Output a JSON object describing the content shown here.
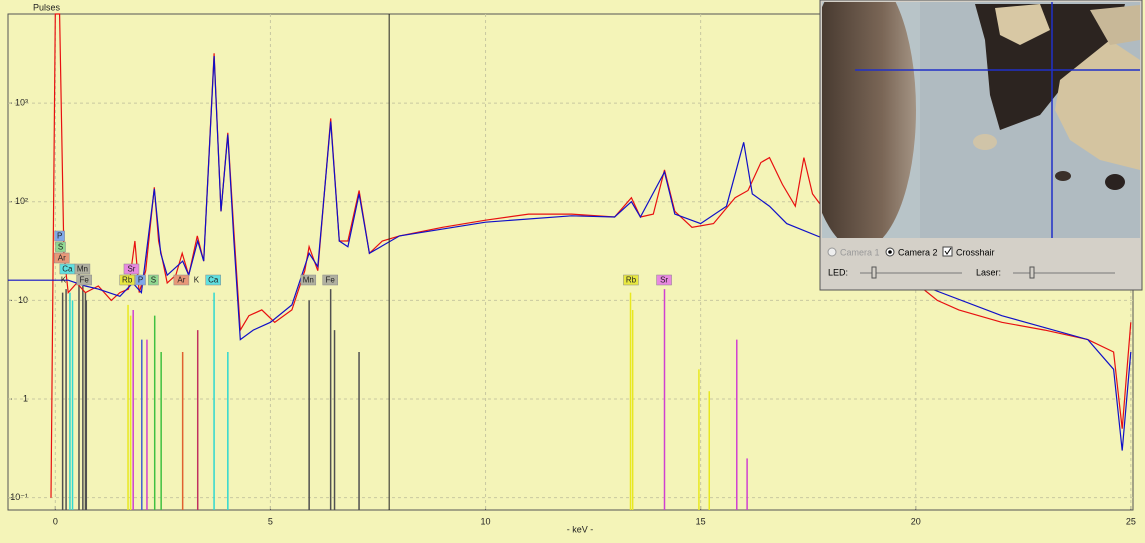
{
  "chart_data": {
    "type": "spectrum",
    "y_axis_label": "Pulses",
    "x_axis_label": "- keV -",
    "log_y": true,
    "grid": true,
    "xlim": [
      -1.1,
      25.05
    ],
    "xticks": [
      0,
      5,
      10,
      15,
      20,
      25
    ],
    "ylim": [
      0.075,
      8000
    ],
    "yticks": [
      {
        "value": 0.1,
        "label": "10⁻¹"
      },
      1,
      10,
      {
        "value": 100,
        "label": "10²"
      },
      {
        "value": 1000,
        "label": "10³"
      }
    ],
    "cursor": 7.76,
    "series": [
      {
        "name": "measured",
        "color": "#e81010",
        "x": [
          -0.1,
          0.0,
          0.1,
          0.2,
          0.3,
          0.5,
          0.7,
          1.0,
          1.3,
          1.5,
          1.7,
          1.85,
          1.95,
          2.1,
          2.3,
          2.4,
          2.6,
          2.8,
          2.95,
          3.1,
          3.3,
          3.45,
          3.69,
          3.85,
          4.01,
          4.15,
          4.3,
          4.5,
          4.8,
          5.1,
          5.5,
          5.8,
          5.9,
          6.1,
          6.4,
          6.6,
          6.8,
          7.06,
          7.3,
          7.6,
          8,
          9,
          10,
          11,
          12,
          13,
          13.39,
          13.6,
          13.9,
          14.16,
          14.4,
          14.8,
          15.3,
          15.8,
          16.1,
          16.4,
          16.6,
          16.9,
          17.2,
          17.4,
          17.6,
          18,
          18.5,
          19,
          19.5,
          20,
          20.5,
          21,
          22,
          23,
          24,
          24.6,
          24.8,
          25
        ],
        "values": [
          0.1,
          8000,
          8000,
          30,
          12,
          15,
          12,
          14,
          10,
          12,
          13,
          40,
          12,
          20,
          140,
          40,
          15,
          18,
          30,
          18,
          45,
          25,
          3200,
          80,
          500,
          50,
          5,
          7,
          8,
          6,
          8,
          20,
          35,
          20,
          700,
          40,
          40,
          130,
          30,
          40,
          45,
          55,
          65,
          75,
          75,
          70,
          110,
          70,
          75,
          210,
          80,
          55,
          60,
          110,
          130,
          250,
          280,
          150,
          90,
          280,
          120,
          70,
          50,
          35,
          25,
          15,
          10,
          8,
          6,
          5,
          4,
          3,
          0.5,
          6
        ]
      },
      {
        "name": "fit",
        "color": "#1010c8",
        "x": [
          -1.1,
          -0.1,
          0.3,
          0.7,
          1.0,
          1.5,
          1.8,
          2.0,
          2.3,
          2.45,
          2.6,
          2.96,
          3.1,
          3.31,
          3.45,
          3.69,
          3.85,
          4.01,
          4.15,
          4.3,
          4.6,
          5,
          5.5,
          5.9,
          6.1,
          6.4,
          6.6,
          6.8,
          7.06,
          7.3,
          8,
          10,
          12,
          13,
          13.39,
          13.6,
          14.16,
          14.4,
          15,
          15.6,
          16.0,
          16.2,
          16.6,
          17,
          18,
          20,
          22,
          24,
          24.6,
          24.8,
          25
        ],
        "values": [
          16,
          16,
          16,
          14,
          13,
          11,
          15,
          12,
          135,
          30,
          18,
          25,
          18,
          40,
          25,
          3000,
          80,
          480,
          40,
          4,
          5,
          6,
          9,
          30,
          22,
          650,
          40,
          35,
          120,
          30,
          45,
          62,
          72,
          70,
          100,
          70,
          200,
          75,
          60,
          90,
          400,
          120,
          90,
          60,
          40,
          15,
          7,
          4,
          2,
          0.3,
          3
        ]
      }
    ],
    "lines": [
      {
        "energy": 0.17,
        "value": 12,
        "color": "#505050"
      },
      {
        "energy": 0.25,
        "value": 13,
        "color": "#505050"
      },
      {
        "energy": 0.34,
        "value": 12,
        "color": "#30d8d0"
      },
      {
        "energy": 0.4,
        "value": 10,
        "color": "#30d8d0"
      },
      {
        "energy": 0.55,
        "value": 23,
        "color": "#505050"
      },
      {
        "energy": 0.64,
        "value": 14,
        "color": "#505050"
      },
      {
        "energy": 0.7,
        "value": 12,
        "color": "#505050"
      },
      {
        "energy": 0.72,
        "value": 10,
        "color": "#505050"
      },
      {
        "energy": 1.69,
        "value": 9,
        "color": "#e8e820"
      },
      {
        "energy": 1.75,
        "value": 7,
        "color": "#e8e820"
      },
      {
        "energy": 1.81,
        "value": 8,
        "color": "#d040d0"
      },
      {
        "energy": 2.01,
        "value": 4,
        "color": "#4060d0"
      },
      {
        "energy": 2.13,
        "value": 4,
        "color": "#d040d0"
      },
      {
        "energy": 2.31,
        "value": 7,
        "color": "#40c040"
      },
      {
        "energy": 2.46,
        "value": 3,
        "color": "#40c040"
      },
      {
        "energy": 2.96,
        "value": 3,
        "color": "#e06030"
      },
      {
        "energy": 3.31,
        "value": 5,
        "color": "#c03060"
      },
      {
        "energy": 3.69,
        "value": 12,
        "color": "#30d8d0"
      },
      {
        "energy": 4.01,
        "value": 3,
        "color": "#30d8d0"
      },
      {
        "energy": 5.9,
        "value": 10,
        "color": "#505050"
      },
      {
        "energy": 6.4,
        "value": 13,
        "color": "#505050"
      },
      {
        "energy": 6.49,
        "value": 5,
        "color": "#505050"
      },
      {
        "energy": 7.06,
        "value": 3,
        "color": "#505050"
      },
      {
        "energy": 13.37,
        "value": 12,
        "color": "#e8e820"
      },
      {
        "energy": 13.42,
        "value": 8,
        "color": "#e8e820"
      },
      {
        "energy": 14.16,
        "value": 13,
        "color": "#d040d0"
      },
      {
        "energy": 14.96,
        "value": 2,
        "color": "#e8e820"
      },
      {
        "energy": 15.2,
        "value": 1.2,
        "color": "#e8e820"
      },
      {
        "energy": 15.84,
        "value": 4,
        "color": "#d040d0"
      },
      {
        "energy": 16.08,
        "value": 0.25,
        "color": "#d040d0"
      }
    ],
    "element_labels": [
      {
        "text": "K",
        "energy": 0.19,
        "color": "none"
      },
      {
        "text": "Fe",
        "energy": 0.67,
        "color": "#b0b0a0"
      },
      {
        "text": "Rb",
        "energy": 1.67,
        "color": "#e8e840"
      },
      {
        "text": "P",
        "energy": 1.98,
        "color": "#80a8e8"
      },
      {
        "text": "S",
        "energy": 2.28,
        "color": "#90d890"
      },
      {
        "text": "Ar",
        "energy": 2.93,
        "color": "#e89878"
      },
      {
        "text": "K",
        "energy": 3.28,
        "color": "none"
      },
      {
        "text": "Ca",
        "energy": 3.67,
        "color": "#60e0e0"
      },
      {
        "text": "Mn",
        "energy": 5.88,
        "color": "#b0b0a0"
      },
      {
        "text": "Fe",
        "energy": 6.39,
        "color": "#b0b0a0"
      },
      {
        "text": "Rb",
        "energy": 13.38,
        "color": "#e8e840"
      },
      {
        "text": "Sr",
        "energy": 14.15,
        "color": "#e888e0"
      },
      {
        "text": "Ca",
        "energy": 0.28,
        "color": "#60e0e0"
      },
      {
        "text": "Mn",
        "energy": 0.63,
        "color": "#b0b0a0"
      },
      {
        "text": "Sr",
        "energy": 1.77,
        "color": "#e888e0"
      },
      {
        "text": "Ar",
        "energy": 0.15,
        "color": "#e89878"
      },
      {
        "text": "S",
        "energy": 0.12,
        "color": "#90d890"
      },
      {
        "text": "P",
        "energy": 0.1,
        "color": "#80a8e8"
      }
    ]
  },
  "camera_panel": {
    "camera1": "Camera 1",
    "camera2": "Camera 2",
    "crosshair": "Crosshair",
    "led": "LED:",
    "laser": "Laser:"
  }
}
